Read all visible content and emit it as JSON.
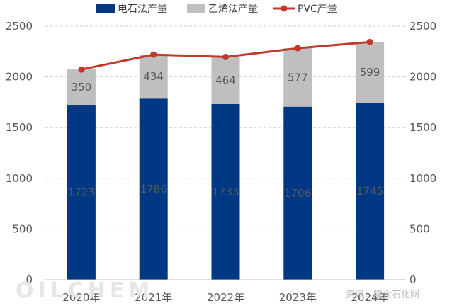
{
  "chart_data": {
    "type": "bar",
    "stacked": true,
    "categories": [
      "2020年",
      "2021年",
      "2022年",
      "2023年",
      "2024年"
    ],
    "series": [
      {
        "name": "电石法产量",
        "kind": "bar",
        "color": "#003883",
        "values": [
          1723,
          1786,
          1733,
          1706,
          1745
        ]
      },
      {
        "name": "乙烯法产量",
        "kind": "bar",
        "color": "#bfbfbf",
        "values": [
          350,
          434,
          464,
          577,
          599
        ]
      },
      {
        "name": "PVC产量",
        "kind": "line",
        "color": "#c0392b",
        "values": [
          2073,
          2220,
          2197,
          2283,
          2344
        ]
      }
    ],
    "ylim": [
      0,
      2500
    ],
    "yticks": [
      0,
      500,
      1000,
      1500,
      2000,
      2500
    ],
    "y2ticks": [
      0,
      500,
      1000,
      1500,
      2000,
      2500
    ],
    "grid": true,
    "legend": "top"
  },
  "watermark": {
    "logo": "OILCHEM",
    "text": "资讯：隆众石化网"
  }
}
